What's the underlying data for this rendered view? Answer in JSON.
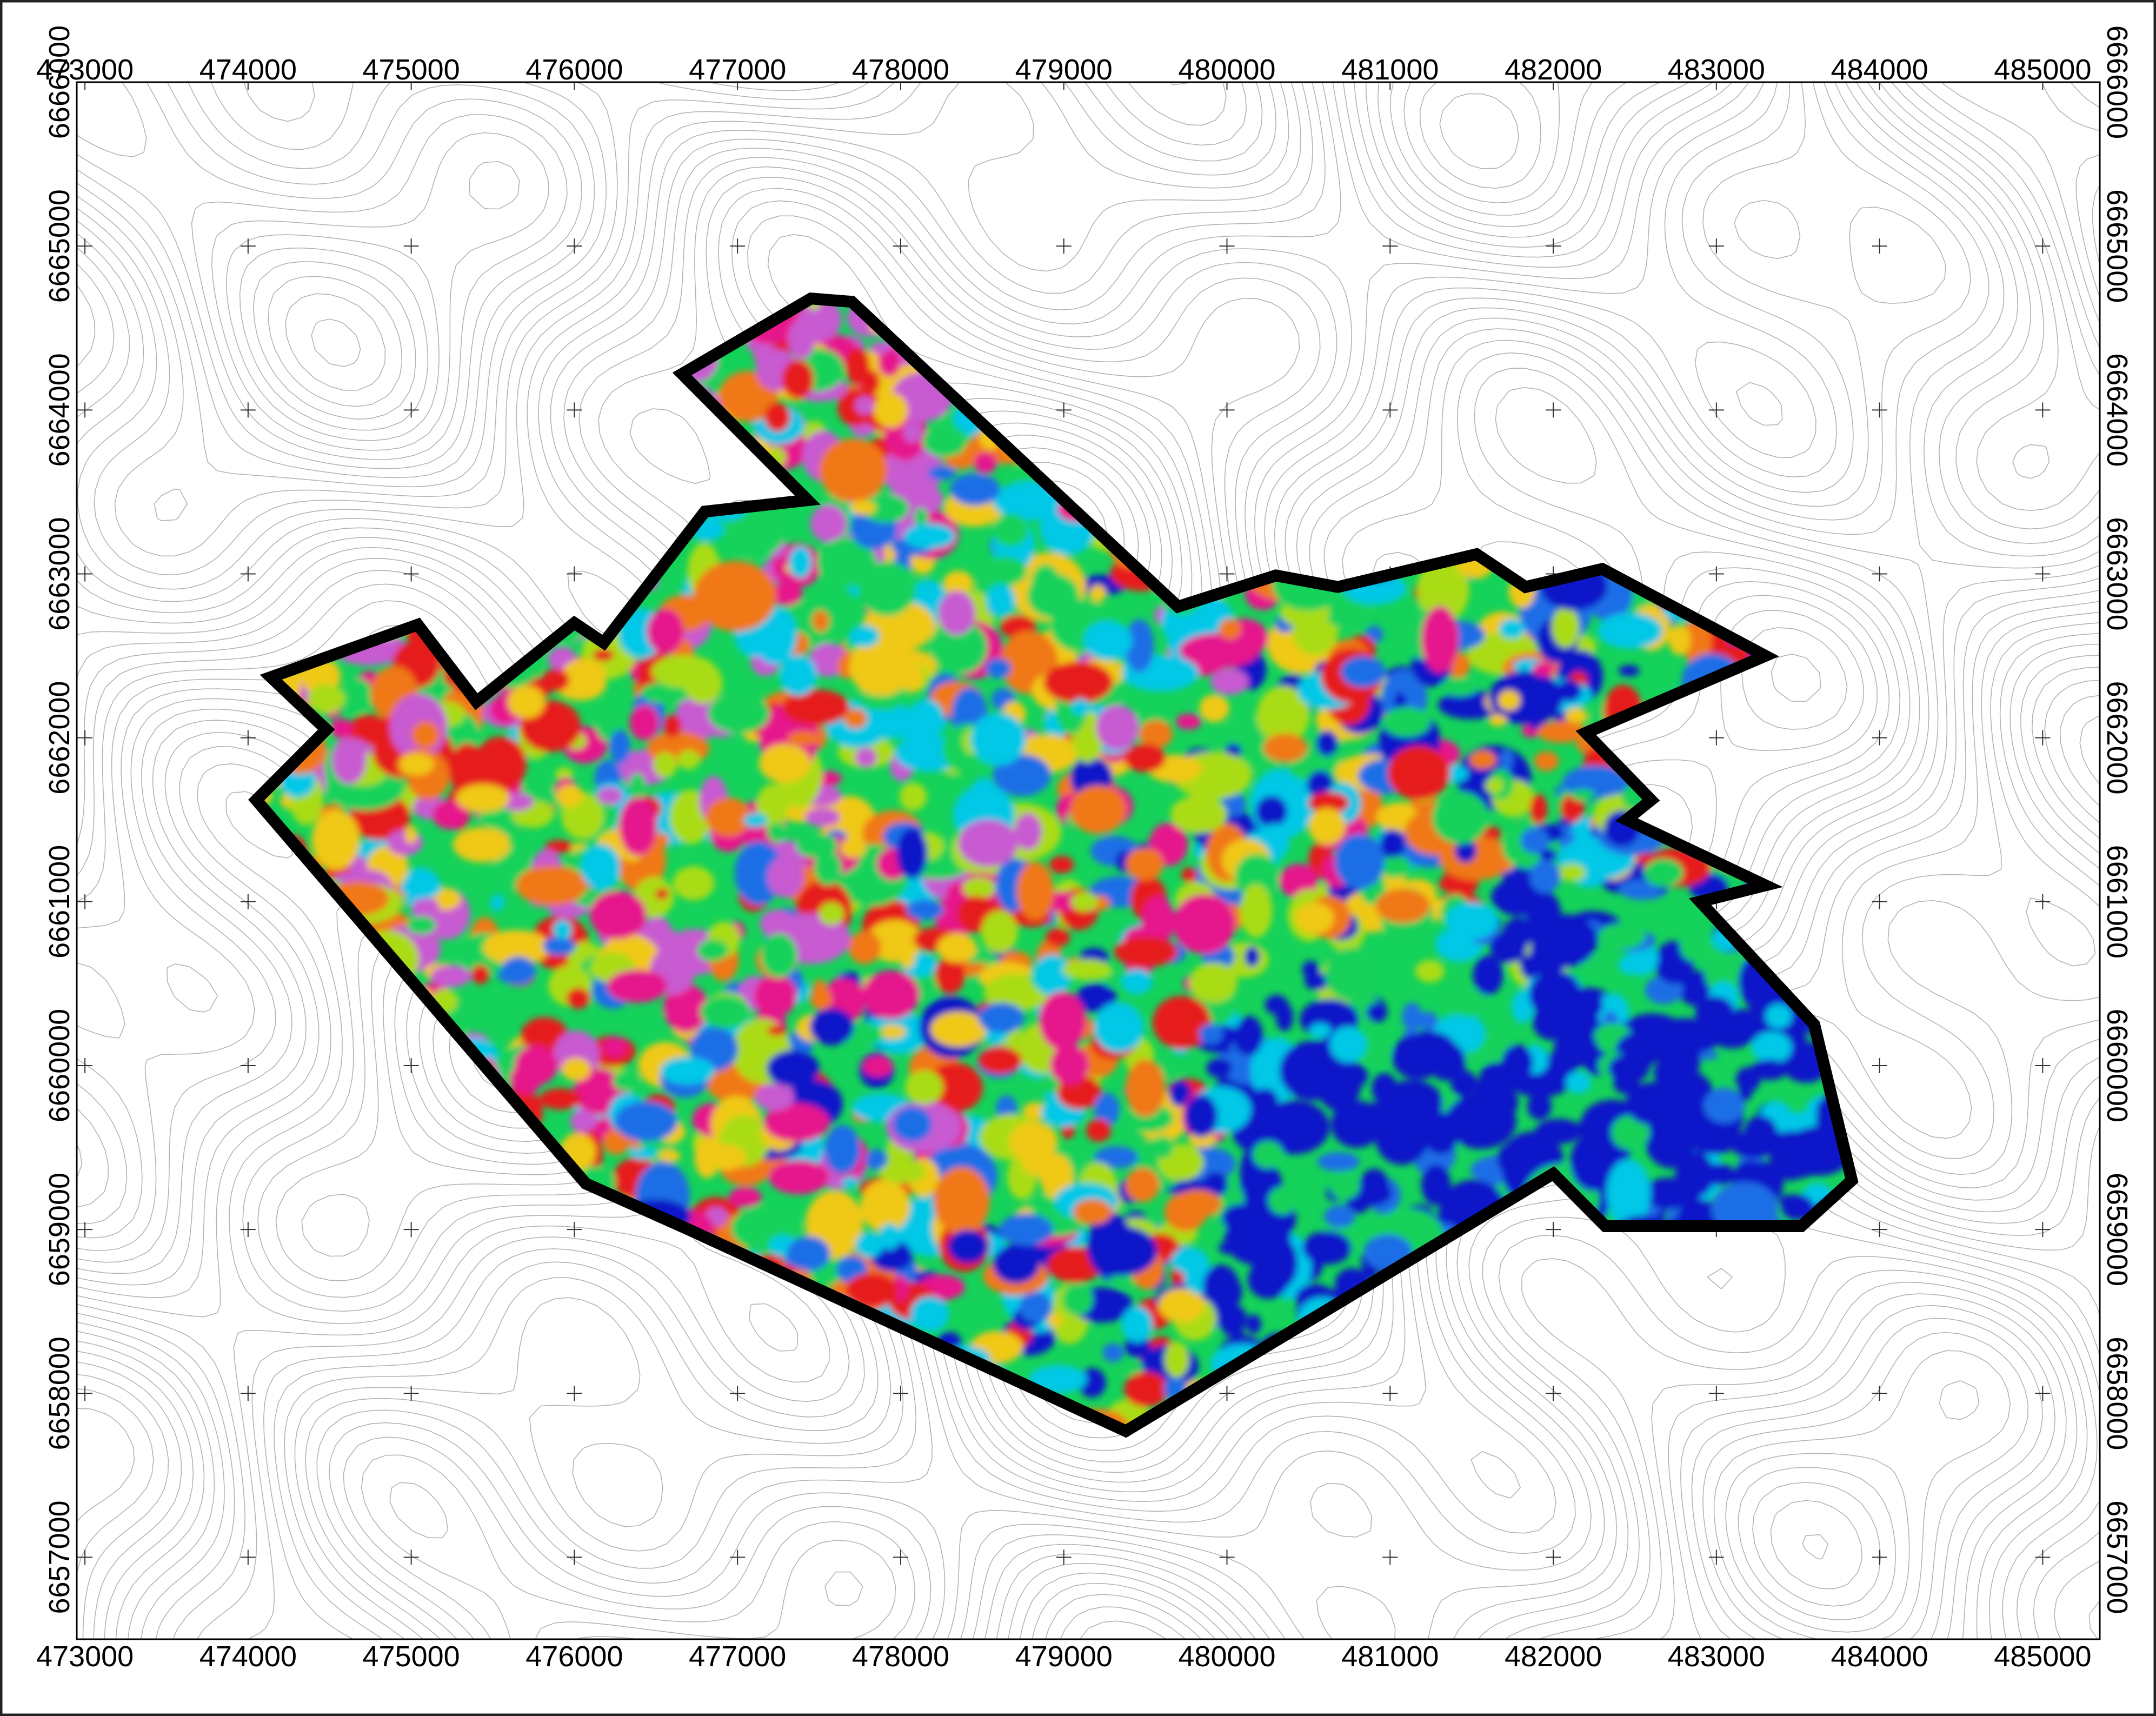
{
  "map": {
    "x_ticks": [
      "473000",
      "474000",
      "475000",
      "476000",
      "477000",
      "478000",
      "479000",
      "480000",
      "481000",
      "482000",
      "483000",
      "484000",
      "485000"
    ],
    "y_ticks": [
      "6666000",
      "6665000",
      "6664000",
      "6663000",
      "6662000",
      "6661000",
      "6660000",
      "6659000",
      "6658000",
      "6657000"
    ],
    "x_range": [
      472950,
      485350
    ],
    "y_range": [
      6656500,
      6666000
    ],
    "layers": [
      "topographic-contours",
      "survey-grid-crosses",
      "geophysical-anomaly-raster",
      "survey-boundary"
    ],
    "survey_boundary_utm": [
      [
        476660,
        6664220
      ],
      [
        477450,
        6664680
      ],
      [
        477700,
        6664660
      ],
      [
        479700,
        6662800
      ],
      [
        480300,
        6662990
      ],
      [
        480680,
        6662920
      ],
      [
        481530,
        6663120
      ],
      [
        481830,
        6662920
      ],
      [
        482300,
        6663030
      ],
      [
        483300,
        6662500
      ],
      [
        482200,
        6662030
      ],
      [
        482600,
        6661620
      ],
      [
        482450,
        6661500
      ],
      [
        483300,
        6661100
      ],
      [
        482900,
        6661000
      ],
      [
        483600,
        6660250
      ],
      [
        483830,
        6659300
      ],
      [
        483520,
        6659020
      ],
      [
        482320,
        6659020
      ],
      [
        482000,
        6659340
      ],
      [
        479380,
        6657770
      ],
      [
        476700,
        6659000
      ],
      [
        476070,
        6659280
      ],
      [
        474050,
        6661620
      ],
      [
        474480,
        6662050
      ],
      [
        474140,
        6662370
      ],
      [
        475040,
        6662690
      ],
      [
        475400,
        6662220
      ],
      [
        476000,
        6662700
      ],
      [
        476180,
        6662580
      ],
      [
        476800,
        6663380
      ],
      [
        477430,
        6663450
      ]
    ],
    "color_scale": [
      "#0a14c8",
      "#1e6ee6",
      "#00c8e6",
      "#14d25a",
      "#aadc14",
      "#f0c814",
      "#f07814",
      "#e61e1e",
      "#e6148c",
      "#c85ad2"
    ]
  }
}
